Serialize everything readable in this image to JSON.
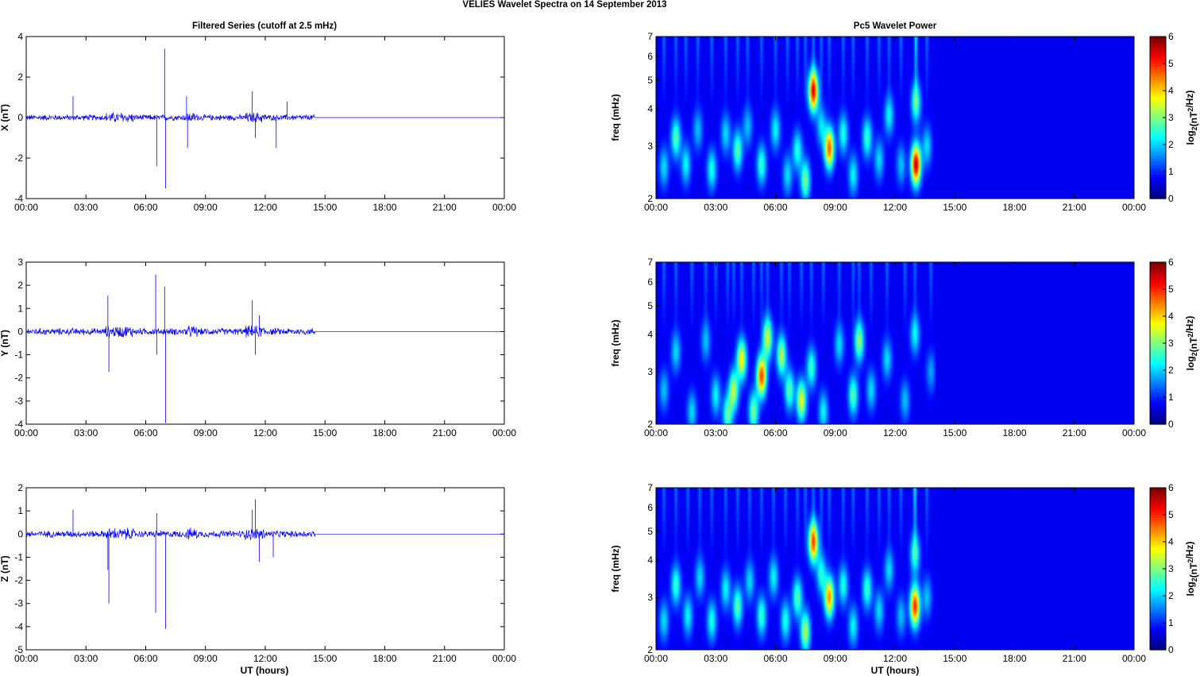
{
  "figure": {
    "title": "VELIES Wavelet Spectra on 14 September 2013",
    "left_title": "Filtered Series (cutoff at 2.5 mHz)",
    "right_title": "Pc5 Wavelet Power",
    "xlabel": "UT (hours)",
    "x_ticks": [
      "00:00",
      "03:00",
      "06:00",
      "09:00",
      "12:00",
      "15:00",
      "18:00",
      "21:00",
      "00:00"
    ],
    "freq_label": "freq (mHz)",
    "colorbar_label": "log2(nT2/Hz)",
    "colorbar_ticks": [
      "0",
      "1",
      "2",
      "3",
      "4",
      "5",
      "6"
    ],
    "freq_ticks": [
      "2",
      "3",
      "4",
      "5",
      "6",
      "7"
    ]
  },
  "colors": {
    "series_line": "#0000ff",
    "axis": "#000000",
    "spectrum_background": "#00008f"
  },
  "chart_data": [
    {
      "type": "line",
      "component": "X",
      "ylabel": "X (nT)",
      "xlim": [
        0,
        24
      ],
      "ylim": [
        -4,
        4
      ],
      "y_ticks": [
        "4",
        "2",
        "0",
        "-2",
        "-4"
      ],
      "noise_amplitude": 0.12,
      "data_end_hour": 14.5,
      "spikes": [
        [
          2.35,
          1.05
        ],
        [
          6.55,
          -2.4
        ],
        [
          6.95,
          3.4
        ],
        [
          7.0,
          -3.5
        ],
        [
          8.05,
          1.05
        ],
        [
          8.1,
          -1.5
        ],
        [
          11.35,
          1.3
        ],
        [
          11.5,
          -1.0
        ],
        [
          12.55,
          -1.5
        ],
        [
          13.1,
          0.8
        ]
      ]
    },
    {
      "type": "heatmap",
      "component": "X",
      "title": "Pc5 Wavelet Power",
      "xlim": [
        0,
        24
      ],
      "ylim_mHz": [
        2,
        7
      ],
      "y_scale": "log",
      "zlim": [
        0,
        6
      ],
      "colormap": "jet",
      "data_end_hour": 14.0,
      "blobs": [
        [
          0.4,
          2.55,
          1.6
        ],
        [
          1.0,
          3.2,
          2.4
        ],
        [
          1.5,
          2.6,
          1.8
        ],
        [
          2.1,
          3.4,
          1.4
        ],
        [
          2.8,
          2.5,
          2.0
        ],
        [
          3.5,
          3.3,
          1.6
        ],
        [
          4.1,
          2.9,
          2.4
        ],
        [
          4.6,
          3.5,
          1.4
        ],
        [
          5.3,
          2.6,
          2.2
        ],
        [
          6.0,
          3.4,
          1.8
        ],
        [
          6.6,
          2.4,
          1.6
        ],
        [
          7.1,
          2.9,
          2.0
        ],
        [
          7.5,
          2.3,
          2.6
        ],
        [
          7.9,
          4.6,
          5.2
        ],
        [
          8.3,
          3.5,
          1.6
        ],
        [
          8.7,
          2.95,
          4.6
        ],
        [
          9.4,
          3.3,
          2.0
        ],
        [
          9.9,
          2.4,
          1.8
        ],
        [
          10.6,
          3.2,
          2.2
        ],
        [
          11.2,
          2.7,
          1.6
        ],
        [
          11.7,
          3.8,
          1.8
        ],
        [
          12.3,
          2.6,
          1.4
        ],
        [
          13.05,
          2.6,
          5.6
        ],
        [
          13.05,
          4.2,
          2.4
        ],
        [
          13.6,
          3.0,
          1.6
        ]
      ]
    },
    {
      "type": "line",
      "component": "Y",
      "ylabel": "Y (nT)",
      "xlim": [
        0,
        24
      ],
      "ylim": [
        -4,
        3
      ],
      "y_ticks": [
        "3",
        "2",
        "1",
        "0",
        "-1",
        "-2",
        "-3",
        "-4"
      ],
      "noise_amplitude": 0.12,
      "data_end_hour": 14.5,
      "spikes": [
        [
          4.1,
          1.55
        ],
        [
          4.15,
          -1.75
        ],
        [
          6.5,
          2.45
        ],
        [
          6.55,
          -1.0
        ],
        [
          6.95,
          1.95
        ],
        [
          7.0,
          -3.95
        ],
        [
          11.35,
          1.35
        ],
        [
          11.5,
          -1.0
        ],
        [
          11.7,
          0.7
        ]
      ]
    },
    {
      "type": "heatmap",
      "component": "Y",
      "title": "Pc5 Wavelet Power",
      "xlim": [
        0,
        24
      ],
      "ylim_mHz": [
        2,
        7
      ],
      "y_scale": "log",
      "zlim": [
        0,
        6
      ],
      "colormap": "jet",
      "data_end_hour": 14.0,
      "blobs": [
        [
          0.4,
          2.6,
          1.4
        ],
        [
          1.0,
          3.5,
          1.6
        ],
        [
          1.8,
          2.2,
          1.6
        ],
        [
          2.5,
          3.8,
          1.4
        ],
        [
          3.0,
          2.5,
          1.8
        ],
        [
          3.6,
          2.15,
          2.4
        ],
        [
          3.9,
          2.6,
          3.0
        ],
        [
          4.3,
          3.3,
          3.6
        ],
        [
          4.9,
          2.2,
          2.6
        ],
        [
          5.3,
          2.9,
          4.8
        ],
        [
          5.6,
          3.9,
          3.2
        ],
        [
          6.3,
          3.4,
          3.0
        ],
        [
          6.7,
          2.6,
          2.4
        ],
        [
          7.3,
          2.4,
          3.4
        ],
        [
          7.8,
          3.1,
          2.2
        ],
        [
          8.4,
          2.2,
          1.8
        ],
        [
          9.2,
          3.7,
          1.6
        ],
        [
          9.9,
          2.5,
          2.4
        ],
        [
          10.2,
          3.8,
          2.8
        ],
        [
          10.8,
          2.6,
          1.6
        ],
        [
          11.6,
          3.3,
          1.6
        ],
        [
          12.5,
          2.4,
          1.4
        ],
        [
          13.0,
          4.0,
          1.8
        ],
        [
          13.8,
          3.0,
          1.2
        ]
      ]
    },
    {
      "type": "line",
      "component": "Z",
      "ylabel": "Z (nT)",
      "xlim": [
        0,
        24
      ],
      "ylim": [
        -5,
        2
      ],
      "y_ticks": [
        "2",
        "1",
        "0",
        "-1",
        "-2",
        "-3",
        "-4",
        "-5"
      ],
      "noise_amplitude": 0.12,
      "data_end_hour": 14.5,
      "spikes": [
        [
          2.35,
          1.05
        ],
        [
          4.1,
          -1.55
        ],
        [
          4.15,
          -3.0
        ],
        [
          6.5,
          -3.4
        ],
        [
          6.55,
          0.9
        ],
        [
          7.0,
          -4.1
        ],
        [
          11.35,
          1.05
        ],
        [
          11.5,
          1.5
        ],
        [
          11.7,
          -1.2
        ],
        [
          12.4,
          -1.0
        ]
      ]
    },
    {
      "type": "heatmap",
      "component": "Z",
      "title": "Pc5 Wavelet Power",
      "xlim": [
        0,
        24
      ],
      "ylim_mHz": [
        2,
        7
      ],
      "y_scale": "log",
      "zlim": [
        0,
        6
      ],
      "colormap": "jet",
      "data_end_hour": 14.0,
      "blobs": [
        [
          0.4,
          2.5,
          1.6
        ],
        [
          1.0,
          3.3,
          2.2
        ],
        [
          1.6,
          2.6,
          1.8
        ],
        [
          2.2,
          3.5,
          1.6
        ],
        [
          2.8,
          2.5,
          2.0
        ],
        [
          3.5,
          3.2,
          1.8
        ],
        [
          4.1,
          2.8,
          2.4
        ],
        [
          4.7,
          3.4,
          1.6
        ],
        [
          5.3,
          2.6,
          2.2
        ],
        [
          5.9,
          3.5,
          1.8
        ],
        [
          6.5,
          2.5,
          2.0
        ],
        [
          7.1,
          3.0,
          2.4
        ],
        [
          7.5,
          2.3,
          3.0
        ],
        [
          7.9,
          4.6,
          4.6
        ],
        [
          8.3,
          3.6,
          2.0
        ],
        [
          8.7,
          3.0,
          4.2
        ],
        [
          9.4,
          3.3,
          2.0
        ],
        [
          9.9,
          2.4,
          1.8
        ],
        [
          10.6,
          3.2,
          2.2
        ],
        [
          11.2,
          2.7,
          1.6
        ],
        [
          11.7,
          3.7,
          1.6
        ],
        [
          12.3,
          2.6,
          1.4
        ],
        [
          13.0,
          2.8,
          5.0
        ],
        [
          13.0,
          4.2,
          2.2
        ],
        [
          13.6,
          3.0,
          1.4
        ]
      ]
    }
  ]
}
